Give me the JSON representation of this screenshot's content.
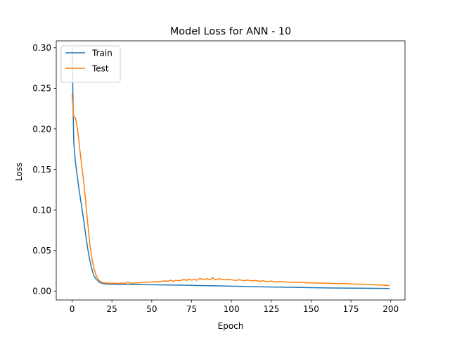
{
  "chart_data": {
    "type": "line",
    "title": "Model Loss for  ANN - 10",
    "xlabel": "Epoch",
    "ylabel": "Loss",
    "xlim": [
      -9.95,
      208.95
    ],
    "ylim": [
      -0.011,
      0.3085
    ],
    "x_ticks": [
      0,
      25,
      50,
      75,
      100,
      125,
      150,
      175,
      200
    ],
    "y_ticks": [
      0.0,
      0.05,
      0.1,
      0.15,
      0.2,
      0.25,
      0.3
    ],
    "y_tick_labels": [
      "0.00",
      "0.05",
      "0.10",
      "0.15",
      "0.20",
      "0.25",
      "0.30"
    ],
    "grid": false,
    "legend_position": "top-left",
    "series": [
      {
        "name": "Train",
        "color": "#1f77b4",
        "x": [
          0,
          1,
          2,
          3,
          4,
          5,
          6,
          7,
          8,
          9,
          10,
          11,
          12,
          13,
          14,
          15,
          16,
          17,
          18,
          19,
          20,
          22,
          24,
          26,
          28,
          30,
          40,
          50,
          60,
          70,
          80,
          90,
          100,
          110,
          120,
          130,
          140,
          150,
          160,
          170,
          180,
          190,
          199
        ],
        "y": [
          0.3,
          0.185,
          0.16,
          0.145,
          0.13,
          0.117,
          0.104,
          0.091,
          0.077,
          0.063,
          0.05,
          0.039,
          0.03,
          0.023,
          0.018,
          0.015,
          0.013,
          0.011,
          0.01,
          0.0095,
          0.009,
          0.0086,
          0.0085,
          0.0084,
          0.0083,
          0.0082,
          0.008,
          0.0078,
          0.0075,
          0.0072,
          0.0068,
          0.0065,
          0.006,
          0.0056,
          0.0052,
          0.0048,
          0.0045,
          0.0042,
          0.0039,
          0.0037,
          0.0035,
          0.0033,
          0.0031
        ]
      },
      {
        "name": "Test",
        "color": "#ff7f0e",
        "x": [
          0,
          1,
          2,
          3,
          4,
          5,
          6,
          7,
          8,
          9,
          10,
          11,
          12,
          13,
          14,
          15,
          16,
          17,
          18,
          19,
          20,
          22,
          24,
          26,
          28,
          30,
          32,
          34,
          35,
          36,
          38,
          40,
          42,
          45,
          48,
          50,
          52,
          55,
          58,
          60,
          62,
          63,
          65,
          68,
          70,
          72,
          73,
          75,
          77,
          78,
          80,
          82,
          85,
          87,
          88,
          90,
          92,
          95,
          98,
          100,
          103,
          105,
          108,
          110,
          113,
          115,
          118,
          120,
          122,
          125,
          128,
          130,
          135,
          140,
          145,
          150,
          155,
          160,
          165,
          170,
          175,
          180,
          185,
          190,
          195,
          199
        ],
        "y": [
          0.242,
          0.215,
          0.214,
          0.205,
          0.19,
          0.172,
          0.155,
          0.14,
          0.122,
          0.1,
          0.08,
          0.06,
          0.045,
          0.034,
          0.026,
          0.02,
          0.016,
          0.013,
          0.0115,
          0.0105,
          0.01,
          0.0098,
          0.0096,
          0.0097,
          0.0095,
          0.0096,
          0.0098,
          0.0097,
          0.0112,
          0.0098,
          0.0096,
          0.01,
          0.0102,
          0.0106,
          0.0109,
          0.0112,
          0.0118,
          0.0115,
          0.0125,
          0.012,
          0.0135,
          0.012,
          0.013,
          0.0128,
          0.0145,
          0.013,
          0.015,
          0.0135,
          0.0148,
          0.0132,
          0.0155,
          0.0145,
          0.015,
          0.014,
          0.0168,
          0.0138,
          0.0152,
          0.014,
          0.0145,
          0.0138,
          0.0132,
          0.014,
          0.0128,
          0.0135,
          0.0125,
          0.013,
          0.012,
          0.0128,
          0.0115,
          0.0122,
          0.011,
          0.0118,
          0.011,
          0.0108,
          0.0105,
          0.01,
          0.0098,
          0.0096,
          0.0092,
          0.0094,
          0.0088,
          0.0085,
          0.0082,
          0.0078,
          0.0072,
          0.0068
        ]
      }
    ]
  }
}
